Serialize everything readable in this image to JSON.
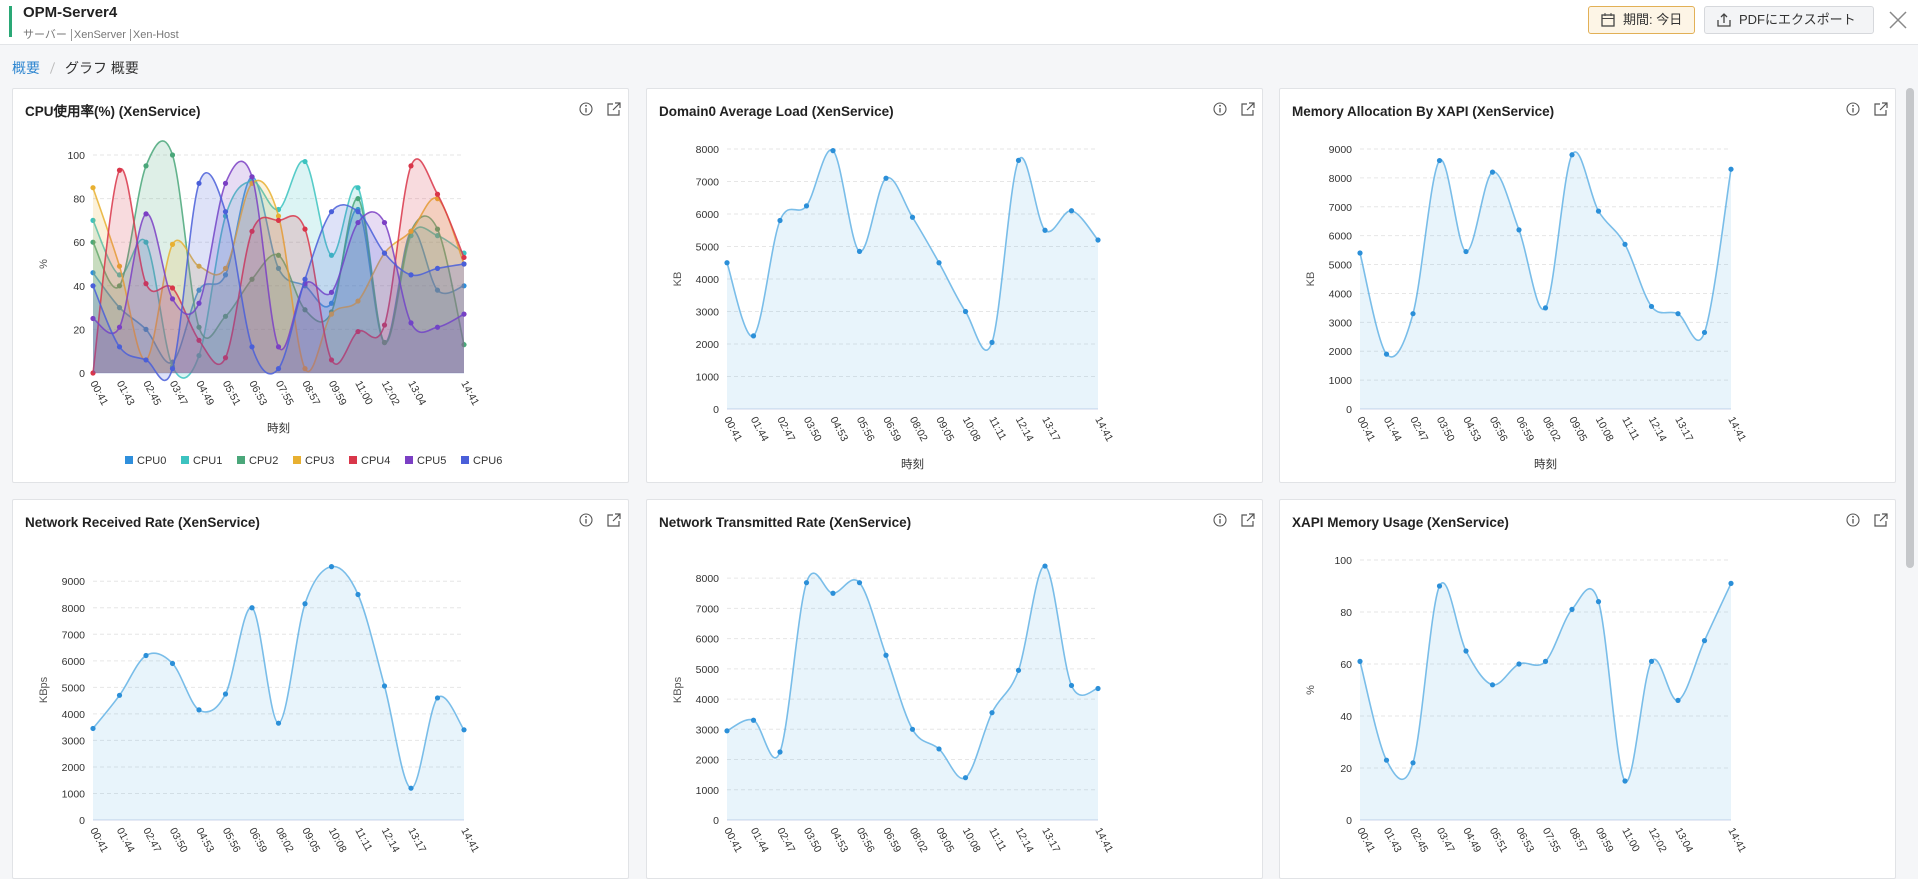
{
  "header": {
    "title": "OPM-Server4",
    "subtitle": [
      "サーバー",
      "XenServer",
      "Xen-Host"
    ],
    "period": "期間: 今日",
    "export": "PDFにエクスポート"
  },
  "breadcrumb": [
    "概要",
    "グラフ 概要"
  ],
  "chart_data": [
    {
      "type": "line",
      "title": "CPU使用率(%) (XenService)",
      "y_label": "%",
      "x_label": "時刻",
      "legend": "bottom",
      "grid": true,
      "categories": [
        "00:41",
        "01:43",
        "02:45",
        "03:47",
        "04:49",
        "05:51",
        "06:53",
        "07:55",
        "08:57",
        "09:59",
        "11:00",
        "12:02",
        "13:04",
        null,
        "14:41"
      ],
      "ylim": [
        0,
        100
      ],
      "yticks": [
        0,
        20,
        40,
        60,
        80,
        100
      ],
      "series": [
        {
          "name": "CPU0",
          "color": "#2f8fdc",
          "values": [
            46,
            30,
            20,
            5,
            38,
            45,
            90,
            48,
            40,
            32,
            75,
            14,
            65,
            38,
            40
          ]
        },
        {
          "name": "CPU1",
          "color": "#3cc3c0",
          "values": [
            70,
            45,
            60,
            3,
            8,
            72,
            88,
            75,
            97,
            54,
            85,
            14,
            63,
            63,
            55
          ]
        },
        {
          "name": "CPU2",
          "color": "#4aa77a",
          "values": [
            60,
            40,
            95,
            100,
            21,
            26,
            43,
            54,
            29,
            28,
            80,
            14,
            65,
            66,
            13
          ]
        },
        {
          "name": "CPU3",
          "color": "#e8b031",
          "values": [
            85,
            49,
            6,
            59,
            49,
            48,
            87,
            72,
            2,
            27,
            33,
            55,
            65,
            80,
            50
          ]
        },
        {
          "name": "CPU4",
          "color": "#d9364a",
          "values": [
            0,
            93,
            41,
            39,
            15,
            7,
            65,
            70,
            66,
            6,
            19,
            22,
            95,
            82,
            53
          ]
        },
        {
          "name": "CPU5",
          "color": "#7b3fc4",
          "values": [
            25,
            21,
            73,
            34,
            32,
            87,
            90,
            12,
            41,
            37,
            69,
            69,
            23,
            21,
            27
          ]
        },
        {
          "name": "CPU6",
          "color": "#4a5fd9",
          "values": [
            40,
            12,
            6,
            2,
            87,
            74,
            12,
            2,
            43,
            74,
            74,
            55,
            45,
            48,
            50
          ]
        }
      ]
    },
    {
      "type": "area",
      "title": "Domain0 Average Load (XenService)",
      "y_label": "KB",
      "x_label": "時刻",
      "grid": true,
      "color": "#5aaee3",
      "categories": [
        "00:41",
        "01:44",
        "02:47",
        "03:50",
        "04:53",
        "05:56",
        "06:59",
        "08:02",
        "09:05",
        "10:08",
        "11:11",
        "12:14",
        "13:17",
        null,
        "14:41"
      ],
      "ylim": [
        0,
        8000
      ],
      "yticks": [
        0,
        1000,
        2000,
        3000,
        4000,
        5000,
        6000,
        7000,
        8000
      ],
      "values": [
        4500,
        2250,
        5800,
        6250,
        7950,
        4850,
        7100,
        5900,
        4500,
        3000,
        2050,
        7650,
        5500,
        6100,
        5200
      ]
    },
    {
      "type": "area",
      "title": "Memory Allocation By XAPI (XenService)",
      "y_label": "KB",
      "x_label": "時刻",
      "grid": true,
      "color": "#5aaee3",
      "categories": [
        "00:41",
        "01:44",
        "02:47",
        "03:50",
        "04:53",
        "05:56",
        "06:59",
        "08:02",
        "09:05",
        "10:08",
        "11:11",
        "12:14",
        "13:17",
        null,
        "14:41"
      ],
      "ylim": [
        0,
        9000
      ],
      "yticks": [
        0,
        1000,
        2000,
        3000,
        4000,
        5000,
        6000,
        7000,
        8000,
        9000
      ],
      "values": [
        5400,
        1900,
        3300,
        8600,
        5450,
        8200,
        6200,
        3500,
        8800,
        6850,
        5700,
        3550,
        3300,
        2650,
        8300
      ]
    },
    {
      "type": "area",
      "title": "Network Received Rate (XenService)",
      "y_label": "KBps",
      "grid": true,
      "color": "#5aaee3",
      "categories": [
        "00:41",
        "01:44",
        "02:47",
        "03:50",
        "04:53",
        "05:56",
        "06:59",
        "08:02",
        "09:05",
        "10:08",
        "11:11",
        "12:14",
        "13:17",
        null,
        "14:41"
      ],
      "ylim": [
        0,
        9800
      ],
      "yticks": [
        0,
        1000,
        2000,
        3000,
        4000,
        5000,
        6000,
        7000,
        8000,
        9000
      ],
      "values": [
        3450,
        4700,
        6200,
        5900,
        4150,
        4750,
        8000,
        3650,
        8150,
        9550,
        8500,
        5050,
        1200,
        4600,
        3400
      ]
    },
    {
      "type": "area",
      "title": "Network Transmitted Rate (XenService)",
      "y_label": "KBps",
      "grid": true,
      "color": "#5aaee3",
      "categories": [
        "00:41",
        "01:44",
        "02:47",
        "03:50",
        "04:53",
        "05:56",
        "06:59",
        "08:02",
        "09:05",
        "10:08",
        "11:11",
        "12:14",
        "13:17",
        null,
        "14:41"
      ],
      "ylim": [
        0,
        8600
      ],
      "yticks": [
        0,
        1000,
        2000,
        3000,
        4000,
        5000,
        6000,
        7000,
        8000
      ],
      "values": [
        2950,
        3300,
        2250,
        7850,
        7500,
        7850,
        5450,
        3000,
        2350,
        1400,
        3550,
        4950,
        8400,
        4450,
        4350
      ]
    },
    {
      "type": "area",
      "title": "XAPI Memory Usage (XenService)",
      "y_label": "%",
      "grid": true,
      "color": "#5aaee3",
      "categories": [
        "00:41",
        "01:43",
        "02:45",
        "03:47",
        "04:49",
        "05:51",
        "06:53",
        "07:55",
        "08:57",
        "09:59",
        "11:00",
        "12:02",
        "13:04",
        null,
        "14:41"
      ],
      "ylim": [
        0,
        100
      ],
      "yticks": [
        0,
        20,
        40,
        60,
        80,
        100
      ],
      "values": [
        61,
        23,
        22,
        90,
        65,
        52,
        60,
        61,
        81,
        84,
        15,
        61,
        46,
        69,
        91
      ]
    }
  ]
}
